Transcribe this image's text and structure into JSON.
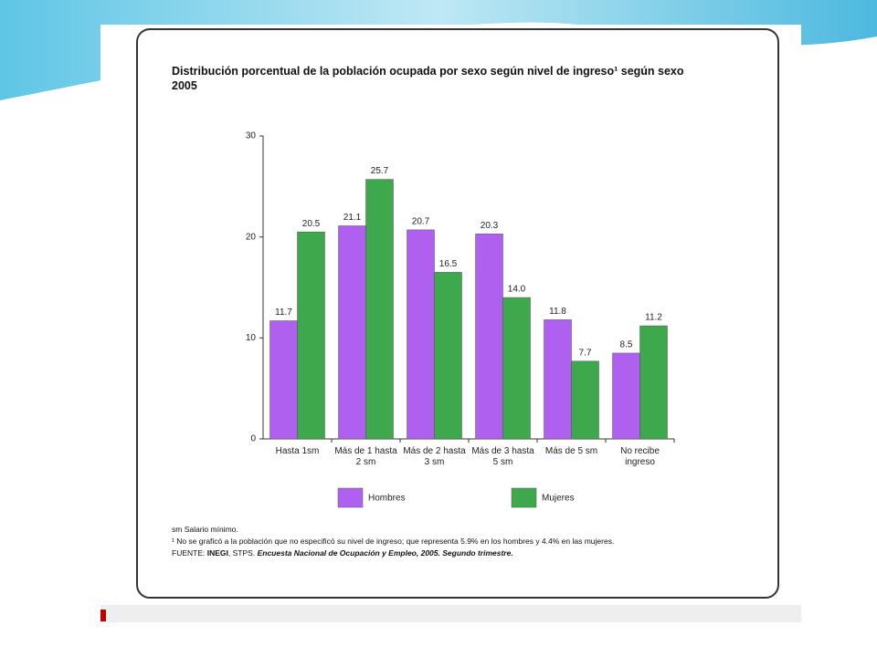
{
  "chart_data": {
    "type": "bar",
    "title": "Distribución porcentual de la población ocupada por sexo según nivel de ingreso¹ según sexo",
    "subtitle": "2005",
    "categories": [
      "Hasta 1sm",
      "Más de 1 hasta 2 sm",
      "Más de 2 hasta 3 sm",
      "Más de 3 hasta 5 sm",
      "Más de 5 sm",
      "No recibe ingreso"
    ],
    "series": [
      {
        "name": "Hombres",
        "color": "#b060ee",
        "values": [
          11.7,
          21.1,
          20.7,
          20.3,
          11.8,
          8.5
        ]
      },
      {
        "name": "Mujeres",
        "color": "#3ea84c",
        "values": [
          20.5,
          25.7,
          16.5,
          14,
          7.7,
          11.2
        ],
        "value_labels": [
          "20.5",
          "25.7",
          "16.5",
          "14.0",
          "7.7",
          "11.2"
        ]
      }
    ],
    "ylim": [
      0,
      30
    ],
    "yticks": [
      0,
      10,
      20,
      30
    ],
    "notes": [
      "sm Salario mínimo.",
      "¹  No se graficó a la población que no especificó su nivel de ingreso; que representa 5.9% en los hombres y 4.4% en las mujeres."
    ],
    "source": [
      "FUENTE:",
      "INEGI",
      ", STPS.",
      "Encuesta Nacional de Ocupación y Empleo, 2005. Segundo trimestre."
    ]
  }
}
